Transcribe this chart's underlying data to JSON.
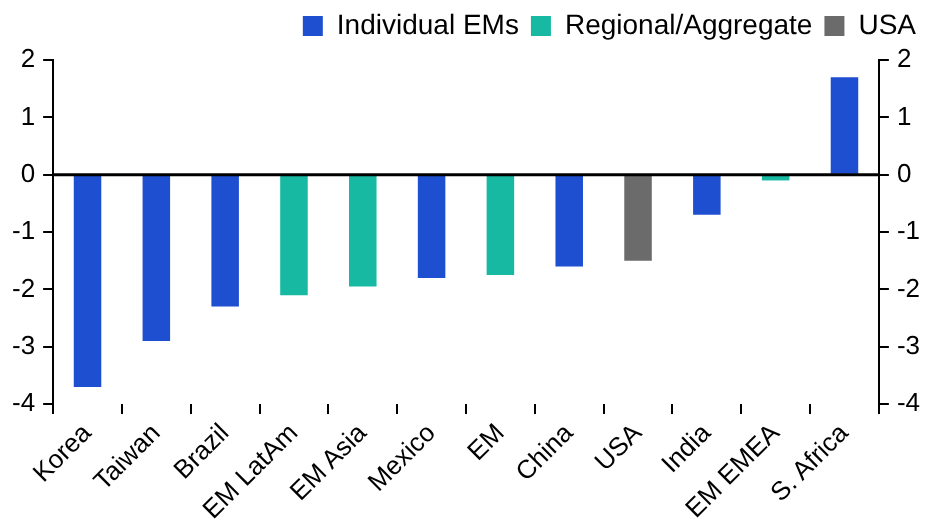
{
  "chart_data": {
    "type": "bar",
    "stacked": true,
    "categories": [
      "Korea",
      "Taiwan",
      "Brazil",
      "EM LatAm",
      "EM Asia",
      "Mexico",
      "EM",
      "China",
      "USA",
      "India",
      "EM EMEA",
      "S. Africa"
    ],
    "series": [
      {
        "name": "Individual EMs",
        "color": "#1f4fd1",
        "values": [
          -3.7,
          -2.9,
          -2.3,
          null,
          null,
          -1.8,
          null,
          -1.6,
          null,
          -0.7,
          null,
          1.7
        ]
      },
      {
        "name": "Regional/Aggregate",
        "color": "#17b9a3",
        "values": [
          null,
          null,
          null,
          -2.1,
          -1.95,
          null,
          -1.75,
          null,
          null,
          null,
          -0.1,
          null
        ]
      },
      {
        "name": "USA",
        "color": "#6b6b6b",
        "values": [
          null,
          null,
          null,
          null,
          null,
          null,
          null,
          null,
          -1.5,
          null,
          null,
          null
        ]
      }
    ],
    "ylim": [
      -4,
      2
    ],
    "yticks": [
      -4,
      -3,
      -2,
      -1,
      0,
      1,
      2
    ],
    "y2lim": [
      -4,
      2
    ],
    "y2ticks": [
      -4,
      -3,
      -2,
      -1,
      0,
      1,
      2
    ],
    "grid": false,
    "ref_lines": [
      {
        "axis": "y",
        "value": 0,
        "color": "#000000"
      }
    ],
    "legend": "top"
  }
}
